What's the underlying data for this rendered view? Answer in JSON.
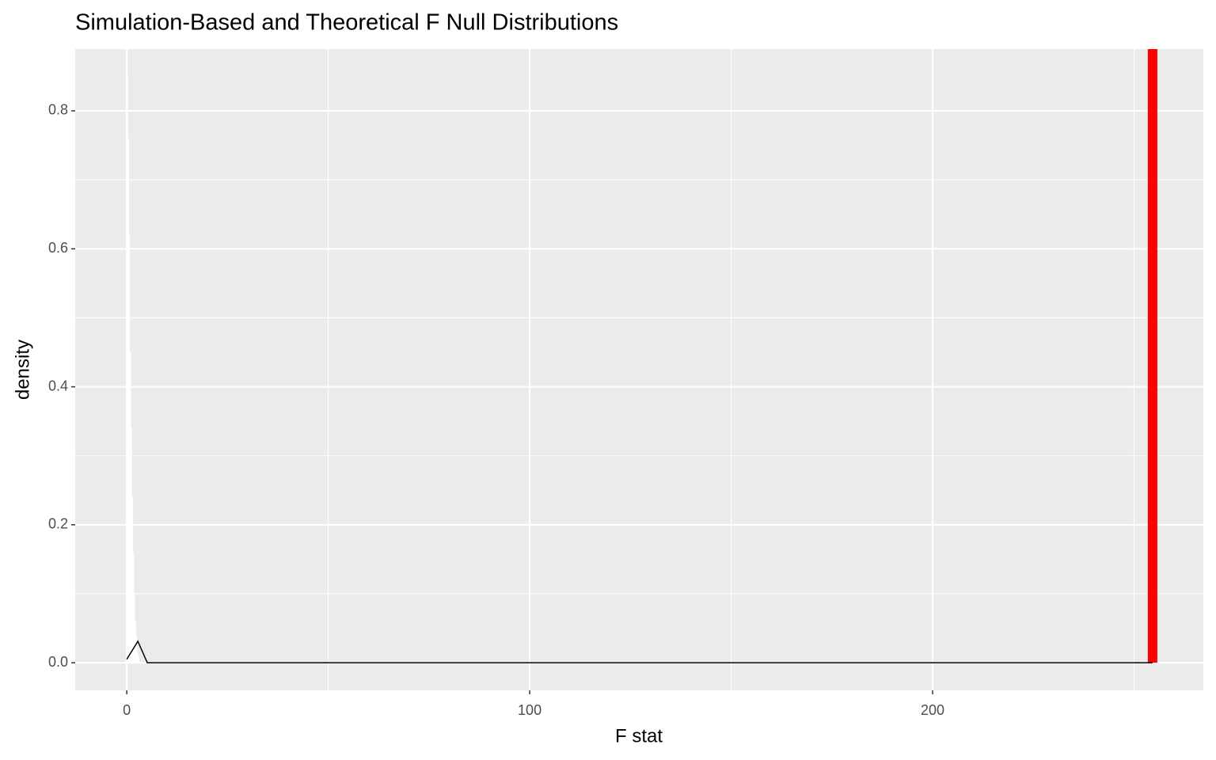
{
  "chart_data": {
    "type": "histogram",
    "title": "Simulation-Based and Theoretical F Null Distributions",
    "x_label": "F stat",
    "y_label": "density",
    "bins": [
      0,
      0.25,
      0.5,
      0.75,
      1,
      1.25,
      1.5,
      1.75,
      2,
      2.25,
      2.5,
      2.75,
      3
    ],
    "values": [
      0.85,
      0.76,
      0.62,
      0.45,
      0.34,
      0.24,
      0.16,
      0.1,
      0.06,
      0.04,
      0.02,
      0.01
    ],
    "fill": "#ffffff",
    "curve": {
      "x": [
        0,
        2.75,
        5.1,
        254.6
      ],
      "y": [
        0.005,
        0.031,
        0,
        0
      ],
      "color": "#000000"
    },
    "vline": {
      "x": 254.6,
      "color": "#ff0000"
    },
    "xlim": [
      -12.8,
      267.2
    ],
    "ylim": [
      -0.04,
      0.8895
    ],
    "xticks": [
      0,
      100,
      200
    ],
    "yticks": [
      {
        "value": 0,
        "label": "0.0"
      },
      0.2,
      0.4,
      0.6,
      0.8
    ],
    "x_minor_breaks": [
      50,
      150,
      250
    ],
    "y_minor_breaks": [
      0.1,
      0.3,
      0.5,
      0.7
    ],
    "grid": true
  }
}
